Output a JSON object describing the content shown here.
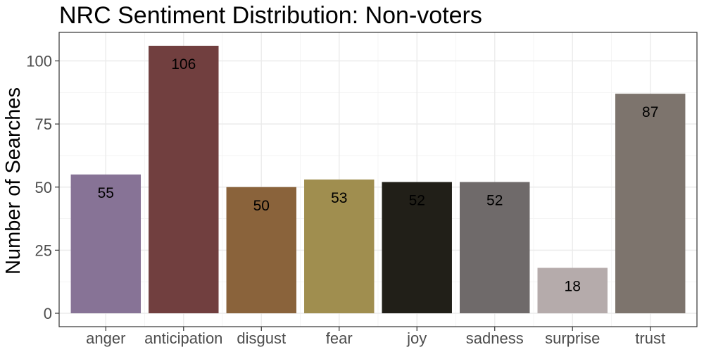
{
  "chart_data": {
    "type": "bar",
    "title": "NRC Sentiment Distribution: Non-voters",
    "xlabel": "",
    "ylabel": "Number of Searches",
    "categories": [
      "anger",
      "anticipation",
      "disgust",
      "fear",
      "joy",
      "sadness",
      "surprise",
      "trust"
    ],
    "values": [
      55,
      106,
      50,
      53,
      52,
      52,
      18,
      87
    ],
    "colors": [
      "#877396",
      "#713f3f",
      "#8a633b",
      "#a08e4f",
      "#211f18",
      "#6f6a6a",
      "#b5abab",
      "#7d746d"
    ],
    "yticks": [
      0,
      25,
      50,
      75,
      100
    ],
    "ylim": [
      -5.3,
      111.3
    ],
    "grid": true,
    "legend": "none"
  }
}
